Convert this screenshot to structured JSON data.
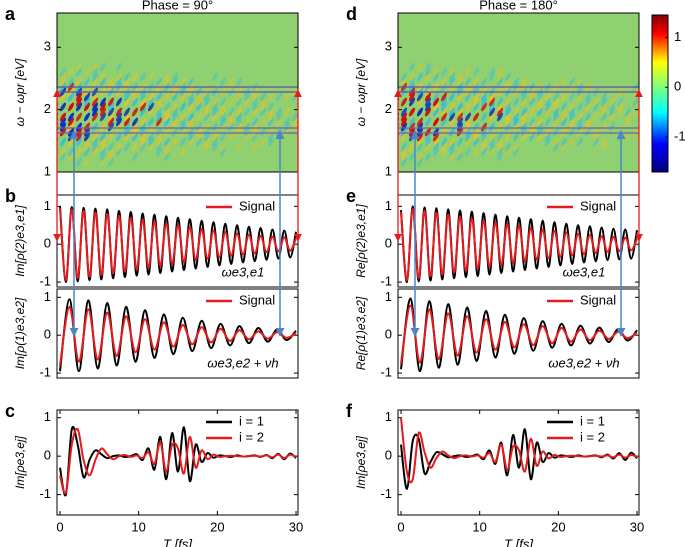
{
  "chart_data": [
    {
      "type": "heatmap",
      "label": "a",
      "title": "Phase = 90°",
      "ylabel": "ω − ωpr [eV]",
      "xlim": [
        -0.38,
        30.25
      ],
      "ylim": [
        1,
        3.55
      ],
      "yticks": [
        1,
        2,
        3
      ]
    },
    {
      "type": "line",
      "label": "b",
      "ylabel": "Im[ρ(2)e3,e1]",
      "annotation": "ωe3,e1",
      "legend": "upper right",
      "xlim": [
        -0.38,
        30.25
      ],
      "ylim": [
        -1.13,
        1.3
      ],
      "yticks": [
        -1,
        0,
        1
      ],
      "x": [
        0,
        0.75,
        1.5,
        2.25,
        3,
        3.75,
        4.5,
        5.25,
        6,
        6.75,
        7.5,
        8.25,
        9,
        9.75,
        10.5,
        11.25,
        12,
        12.75,
        13.5,
        14.25,
        15,
        15.75,
        16.5,
        17.25,
        18,
        18.75,
        19.5,
        20.25,
        21,
        21.75,
        22.5,
        23.25,
        24,
        24.75,
        25.5,
        26.25,
        27,
        27.75,
        28.5,
        29.25,
        30
      ],
      "series": [
        {
          "color": "#000000",
          "values": [
            1.0,
            -1.0,
            0.98,
            -0.98,
            0.96,
            -0.95,
            0.94,
            -0.93,
            0.92,
            -0.9,
            0.88,
            -0.87,
            0.85,
            -0.83,
            0.81,
            -0.8,
            0.78,
            -0.76,
            0.74,
            -0.72,
            0.7,
            -0.68,
            0.66,
            -0.64,
            0.62,
            -0.6,
            0.58,
            -0.56,
            0.54,
            -0.52,
            0.5,
            -0.48,
            0.46,
            -0.45,
            0.43,
            -0.41,
            0.39,
            -0.38,
            0.36,
            -0.35,
            0.33
          ]
        },
        {
          "name": "Signal",
          "color": "#e41a1c",
          "values": [
            0.95,
            -0.95,
            0.92,
            -0.9,
            0.88,
            -0.86,
            0.84,
            -0.82,
            0.8,
            -0.77,
            0.75,
            -0.72,
            0.7,
            -0.67,
            0.65,
            -0.62,
            0.6,
            -0.57,
            0.55,
            -0.52,
            0.5,
            -0.47,
            0.45,
            -0.42,
            0.4,
            -0.38,
            0.36,
            -0.34,
            0.32,
            -0.3,
            0.28,
            -0.27,
            0.25,
            -0.24,
            0.22,
            -0.21,
            0.2,
            -0.19,
            0.18,
            -0.17,
            0.16
          ]
        }
      ]
    },
    {
      "type": "line",
      "ylabel": "Im[ρ(1)e3,e2]",
      "annotation": "ωe3,e2 + νh",
      "legend": "upper right",
      "xlim": [
        -0.38,
        30.25
      ],
      "ylim": [
        -1.13,
        1.22
      ],
      "yticks": [
        -1,
        0,
        1
      ],
      "x": [
        0,
        1.2,
        2.4,
        3.6,
        4.8,
        6,
        7.2,
        8.4,
        9.6,
        10.8,
        12,
        13.2,
        14.4,
        15.6,
        16.8,
        18,
        19.2,
        20.4,
        21.6,
        22.8,
        24,
        25.2,
        26.4,
        27.6,
        28.8,
        30
      ],
      "series": [
        {
          "color": "#000000",
          "values": [
            -0.95,
            0.95,
            -0.95,
            0.92,
            -0.88,
            0.85,
            -0.8,
            0.75,
            -0.7,
            0.66,
            -0.6,
            0.55,
            -0.5,
            0.46,
            -0.42,
            0.38,
            -0.34,
            0.3,
            -0.27,
            0.24,
            -0.21,
            0.19,
            -0.17,
            0.15,
            -0.13,
            0.12
          ]
        },
        {
          "name": "Signal",
          "color": "#e41a1c",
          "values": [
            -0.8,
            0.75,
            -0.7,
            0.68,
            -0.64,
            0.6,
            -0.55,
            0.5,
            -0.45,
            0.42,
            -0.38,
            0.34,
            -0.3,
            0.27,
            -0.24,
            0.21,
            -0.19,
            0.17,
            -0.15,
            0.13,
            -0.11,
            0.1,
            -0.09,
            0.08,
            -0.07,
            0.06
          ]
        }
      ]
    },
    {
      "type": "line",
      "label": "c",
      "ylabel": "Im[ρe3,ej]",
      "xlabel": "T [fs]",
      "legend": "upper right",
      "xlim": [
        -0.38,
        30.25
      ],
      "ylim": [
        -1.53,
        1.2
      ],
      "yticks": [
        -1,
        0,
        1
      ],
      "xticks": [
        0,
        10,
        20,
        30
      ],
      "x": [
        0,
        0.75,
        1.5,
        2.25,
        3,
        3.75,
        4.5,
        5.25,
        6,
        6.75,
        7.5,
        8.25,
        9,
        9.75,
        10.5,
        11.25,
        12,
        12.75,
        13.5,
        14.25,
        15,
        15.75,
        16.5,
        17.25,
        18,
        18.75,
        19.5,
        20.25,
        21,
        21.75,
        22.5,
        23.25,
        24,
        24.75,
        25.5,
        26.25,
        27,
        27.75,
        28.5,
        29.25,
        30
      ],
      "series": [
        {
          "name": "i = 1",
          "color": "#000000",
          "values": [
            -0.3,
            -1.0,
            0.7,
            0.3,
            -0.55,
            -0.1,
            0.15,
            0.05,
            -0.05,
            0,
            0.02,
            -0.02,
            0,
            0.05,
            -0.1,
            0.2,
            -0.35,
            0.5,
            -0.6,
            0.6,
            -0.4,
            0.75,
            -0.65,
            0.3,
            -0.15,
            0.08,
            -0.04,
            0.02,
            0,
            -0.02,
            0.02,
            -0.01,
            0,
            0.02,
            -0.02,
            0.03,
            -0.05,
            0.06,
            -0.08,
            0.07,
            -0.05
          ]
        },
        {
          "name": "i = 2",
          "color": "#e41a1c",
          "values": [
            -0.5,
            -0.95,
            0.3,
            0.7,
            -0.1,
            -0.5,
            -0.1,
            0.2,
            0.05,
            -0.08,
            0,
            0.03,
            -0.02,
            0.02,
            -0.05,
            0.1,
            -0.2,
            0.35,
            -0.4,
            0.3,
            0.2,
            -0.45,
            0.5,
            -0.3,
            0.15,
            -0.08,
            0.04,
            -0.02,
            0,
            0.01,
            0,
            -0.01,
            0,
            0.01,
            -0.01,
            0.02,
            -0.03,
            0.04,
            -0.05,
            0.04,
            -0.02
          ]
        }
      ]
    },
    {
      "type": "heatmap",
      "label": "d",
      "title": "Phase = 180°",
      "ylabel": "ω − ωpr [eV]",
      "xlim": [
        -0.38,
        30.25
      ],
      "ylim": [
        1,
        3.55
      ],
      "yticks": [
        1,
        2,
        3
      ]
    },
    {
      "type": "line",
      "label": "e",
      "ylabel": "Re[ρ(2)e3,e1]",
      "annotation": "ωe3,e1",
      "legend": "upper right",
      "xlim": [
        -0.38,
        30.25
      ],
      "ylim": [
        -1.13,
        1.3
      ],
      "yticks": [
        -1,
        0,
        1
      ],
      "x": [
        0,
        0.75,
        1.5,
        2.25,
        3,
        3.75,
        4.5,
        5.25,
        6,
        6.75,
        7.5,
        8.25,
        9,
        9.75,
        10.5,
        11.25,
        12,
        12.75,
        13.5,
        14.25,
        15,
        15.75,
        16.5,
        17.25,
        18,
        18.75,
        19.5,
        20.25,
        21,
        21.75,
        22.5,
        23.25,
        24,
        24.75,
        25.5,
        26.25,
        27,
        27.75,
        28.5,
        29.25,
        30
      ],
      "series": [
        {
          "color": "#000000",
          "values": [
            0.9,
            -1.0,
            1.0,
            -0.98,
            0.97,
            -0.96,
            0.95,
            -0.93,
            0.92,
            -0.9,
            0.89,
            -0.87,
            0.86,
            -0.84,
            0.82,
            -0.8,
            0.78,
            -0.76,
            0.74,
            -0.72,
            0.7,
            -0.68,
            0.66,
            -0.64,
            0.62,
            -0.6,
            0.58,
            -0.56,
            0.54,
            -0.52,
            0.5,
            -0.48,
            0.47,
            -0.45,
            0.44,
            -0.42,
            0.41,
            -0.4,
            0.39,
            -0.38,
            0.37
          ]
        },
        {
          "name": "Signal",
          "color": "#e41a1c",
          "values": [
            0.85,
            -0.95,
            0.93,
            -0.9,
            0.88,
            -0.85,
            0.83,
            -0.8,
            0.78,
            -0.75,
            0.73,
            -0.7,
            0.68,
            -0.65,
            0.63,
            -0.6,
            0.58,
            -0.55,
            0.53,
            -0.5,
            0.48,
            -0.45,
            0.43,
            -0.41,
            0.39,
            -0.37,
            0.35,
            -0.33,
            0.31,
            -0.29,
            0.27,
            -0.26,
            0.24,
            -0.23,
            0.21,
            -0.2,
            0.19,
            -0.18,
            0.17,
            -0.16,
            0.15
          ]
        }
      ]
    },
    {
      "type": "line",
      "ylabel": "Re[ρ(1)e3,e2]",
      "annotation": "ωe3,e2 + νh",
      "legend": "upper right",
      "xlim": [
        -0.38,
        30.25
      ],
      "ylim": [
        -1.13,
        1.22
      ],
      "yticks": [
        -1,
        0,
        1
      ],
      "x": [
        0,
        1.2,
        2.4,
        3.6,
        4.8,
        6,
        7.2,
        8.4,
        9.6,
        10.8,
        12,
        13.2,
        14.4,
        15.6,
        16.8,
        18,
        19.2,
        20.4,
        21.6,
        22.8,
        24,
        25.2,
        26.4,
        27.6,
        28.8,
        30
      ],
      "series": [
        {
          "color": "#000000",
          "values": [
            -0.9,
            0.97,
            -0.95,
            0.9,
            -0.86,
            0.82,
            -0.78,
            0.73,
            -0.68,
            0.64,
            -0.59,
            0.54,
            -0.49,
            0.45,
            -0.41,
            0.37,
            -0.33,
            0.3,
            -0.27,
            0.25,
            -0.22,
            0.2,
            -0.18,
            0.16,
            -0.14,
            0.13
          ]
        },
        {
          "name": "Signal",
          "color": "#e41a1c",
          "values": [
            -0.75,
            0.78,
            -0.72,
            0.68,
            -0.63,
            0.58,
            -0.54,
            0.5,
            -0.46,
            0.42,
            -0.38,
            0.35,
            -0.32,
            0.29,
            -0.26,
            0.24,
            -0.21,
            0.19,
            -0.17,
            0.15,
            -0.13,
            0.12,
            -0.1,
            0.09,
            -0.08,
            0.07
          ]
        }
      ]
    },
    {
      "type": "line",
      "label": "f",
      "ylabel": "Im[ρe3,ej]",
      "xlabel": "T [fs]",
      "legend": "upper right",
      "xlim": [
        -0.38,
        30.25
      ],
      "ylim": [
        -1.53,
        1.2
      ],
      "yticks": [
        -1,
        0,
        1
      ],
      "xticks": [
        0,
        10,
        20,
        30
      ],
      "x": [
        0,
        0.75,
        1.5,
        2.25,
        3,
        3.75,
        4.5,
        5.25,
        6,
        6.75,
        7.5,
        8.25,
        9,
        9.75,
        10.5,
        11.25,
        12,
        12.75,
        13.5,
        14.25,
        15,
        15.75,
        16.5,
        17.25,
        18,
        18.75,
        19.5,
        20.25,
        21,
        21.75,
        22.5,
        23.25,
        24,
        24.75,
        25.5,
        26.25,
        27,
        27.75,
        28.5,
        29.25,
        30
      ],
      "series": [
        {
          "name": "i = 1",
          "color": "#000000",
          "values": [
            0.3,
            -0.85,
            0.4,
            0.45,
            -0.45,
            -0.15,
            0.1,
            0.05,
            -0.03,
            0,
            0.02,
            -0.02,
            0,
            0.04,
            -0.08,
            0.15,
            -0.2,
            0.35,
            -0.5,
            0.55,
            -0.3,
            0.7,
            -0.6,
            0.35,
            -0.15,
            0.08,
            -0.04,
            0.02,
            0,
            -0.02,
            0.02,
            -0.01,
            0,
            0.02,
            -0.03,
            0.04,
            -0.06,
            0.08,
            -0.1,
            0.09,
            -0.06
          ]
        },
        {
          "name": "i = 2",
          "color": "#e41a1c",
          "values": [
            1.0,
            -0.4,
            -0.6,
            0.6,
            0.1,
            -0.3,
            -0.05,
            0.12,
            0.02,
            -0.05,
            0,
            0.02,
            -0.01,
            0.02,
            -0.04,
            0.08,
            -0.15,
            0.3,
            -0.35,
            0.25,
            0.15,
            -0.4,
            0.45,
            -0.25,
            0.12,
            -0.06,
            0.03,
            -0.02,
            0,
            0.01,
            0,
            -0.01,
            0,
            0.01,
            -0.01,
            0.02,
            -0.03,
            0.04,
            -0.04,
            0.03,
            -0.02
          ]
        }
      ]
    },
    {
      "type": "colorbar",
      "clim": [
        -1.7,
        1.45
      ],
      "cticks": [
        -1,
        0,
        1
      ]
    }
  ]
}
